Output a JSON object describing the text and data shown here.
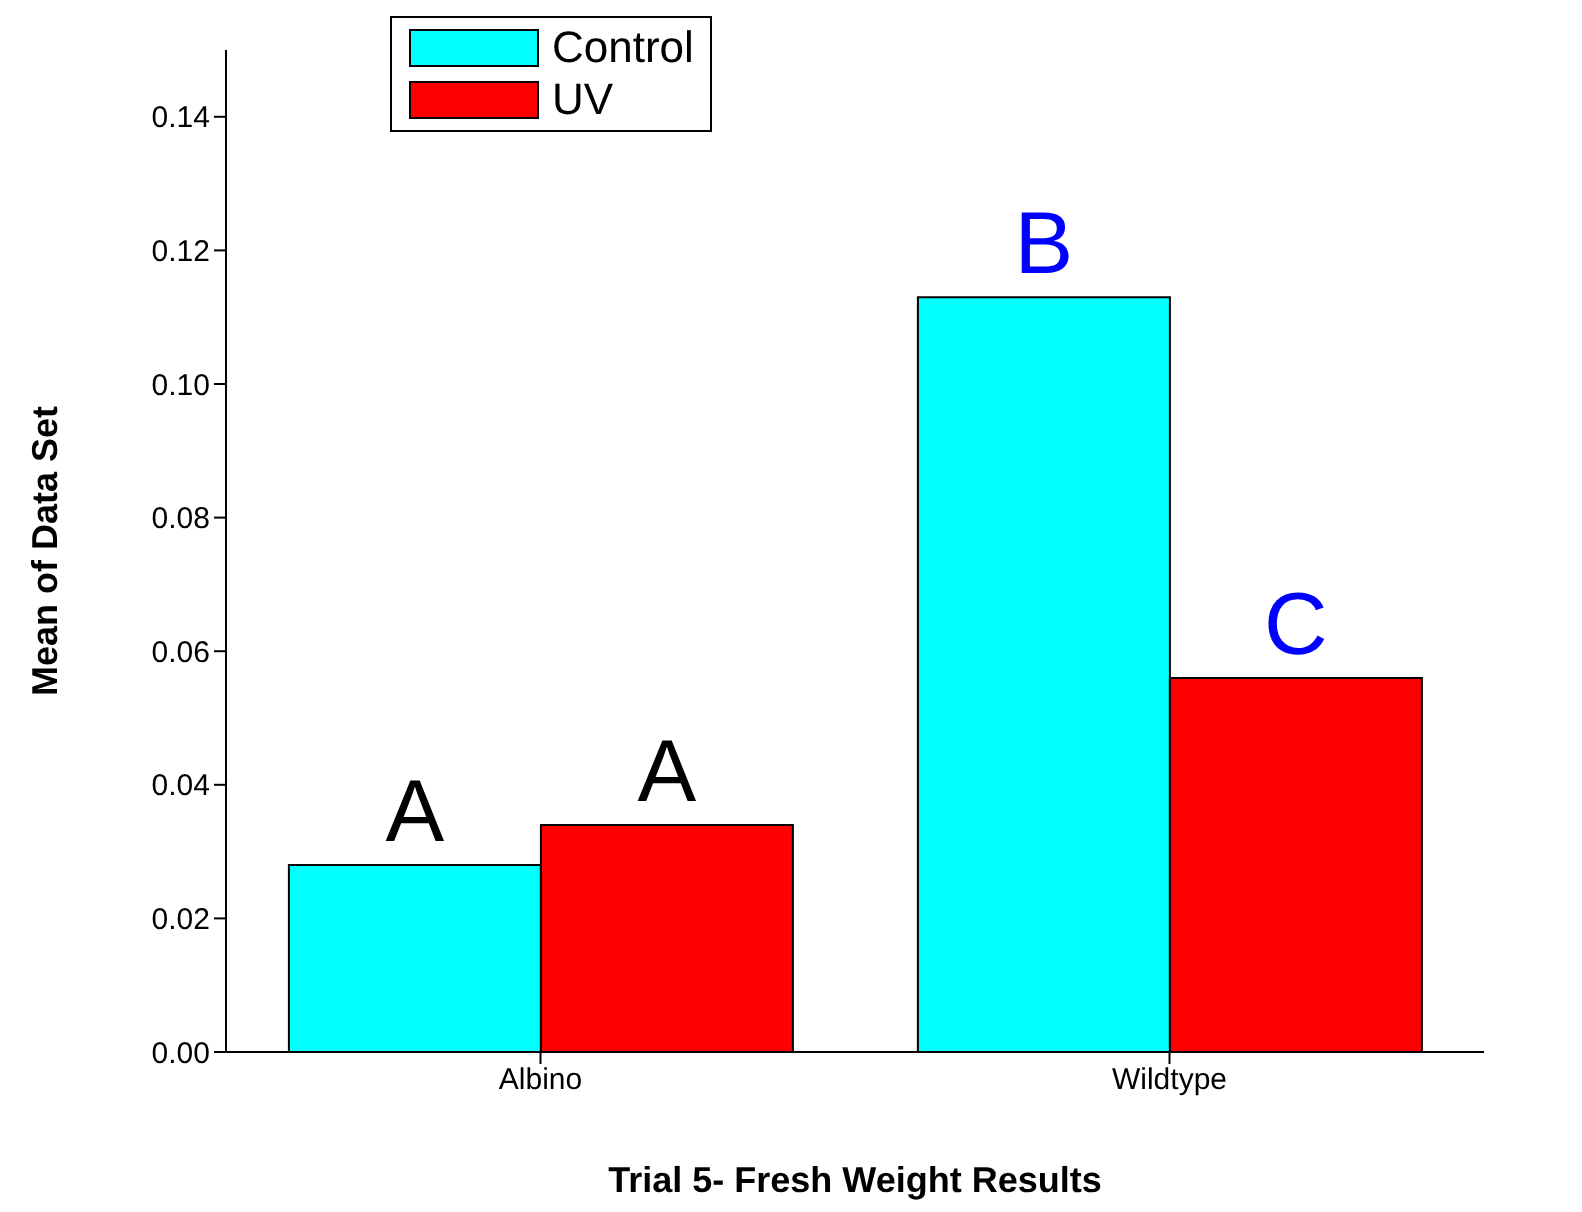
{
  "chart_data": {
    "type": "bar",
    "xlabel": "Trial 5- Fresh Weight Results",
    "ylabel": "Mean of Data Set",
    "categories": [
      "Albino",
      "Wildtype"
    ],
    "series": [
      {
        "name": "Control",
        "color": "#00ffff",
        "values": [
          0.028,
          0.113
        ]
      },
      {
        "name": "UV",
        "color": "#ff0000",
        "values": [
          0.034,
          0.056
        ]
      }
    ],
    "ylim": [
      0,
      0.15
    ],
    "yticks": [
      {
        "value": 0,
        "label": "0.00"
      },
      0.02,
      0.04,
      0.06,
      0.08,
      {
        "value": 0.1,
        "label": "0.10"
      },
      0.12,
      0.14
    ],
    "grid": false,
    "legend": "top left",
    "annotations": [
      {
        "text": "A",
        "x": "Albino",
        "y": 0.028
      },
      {
        "text": "A",
        "x": "Albino",
        "y": 0.034
      },
      {
        "text": "B",
        "x": "Wildtype",
        "y": 0.113
      },
      {
        "text": "C",
        "x": "Wildtype",
        "y": 0.056
      }
    ]
  }
}
